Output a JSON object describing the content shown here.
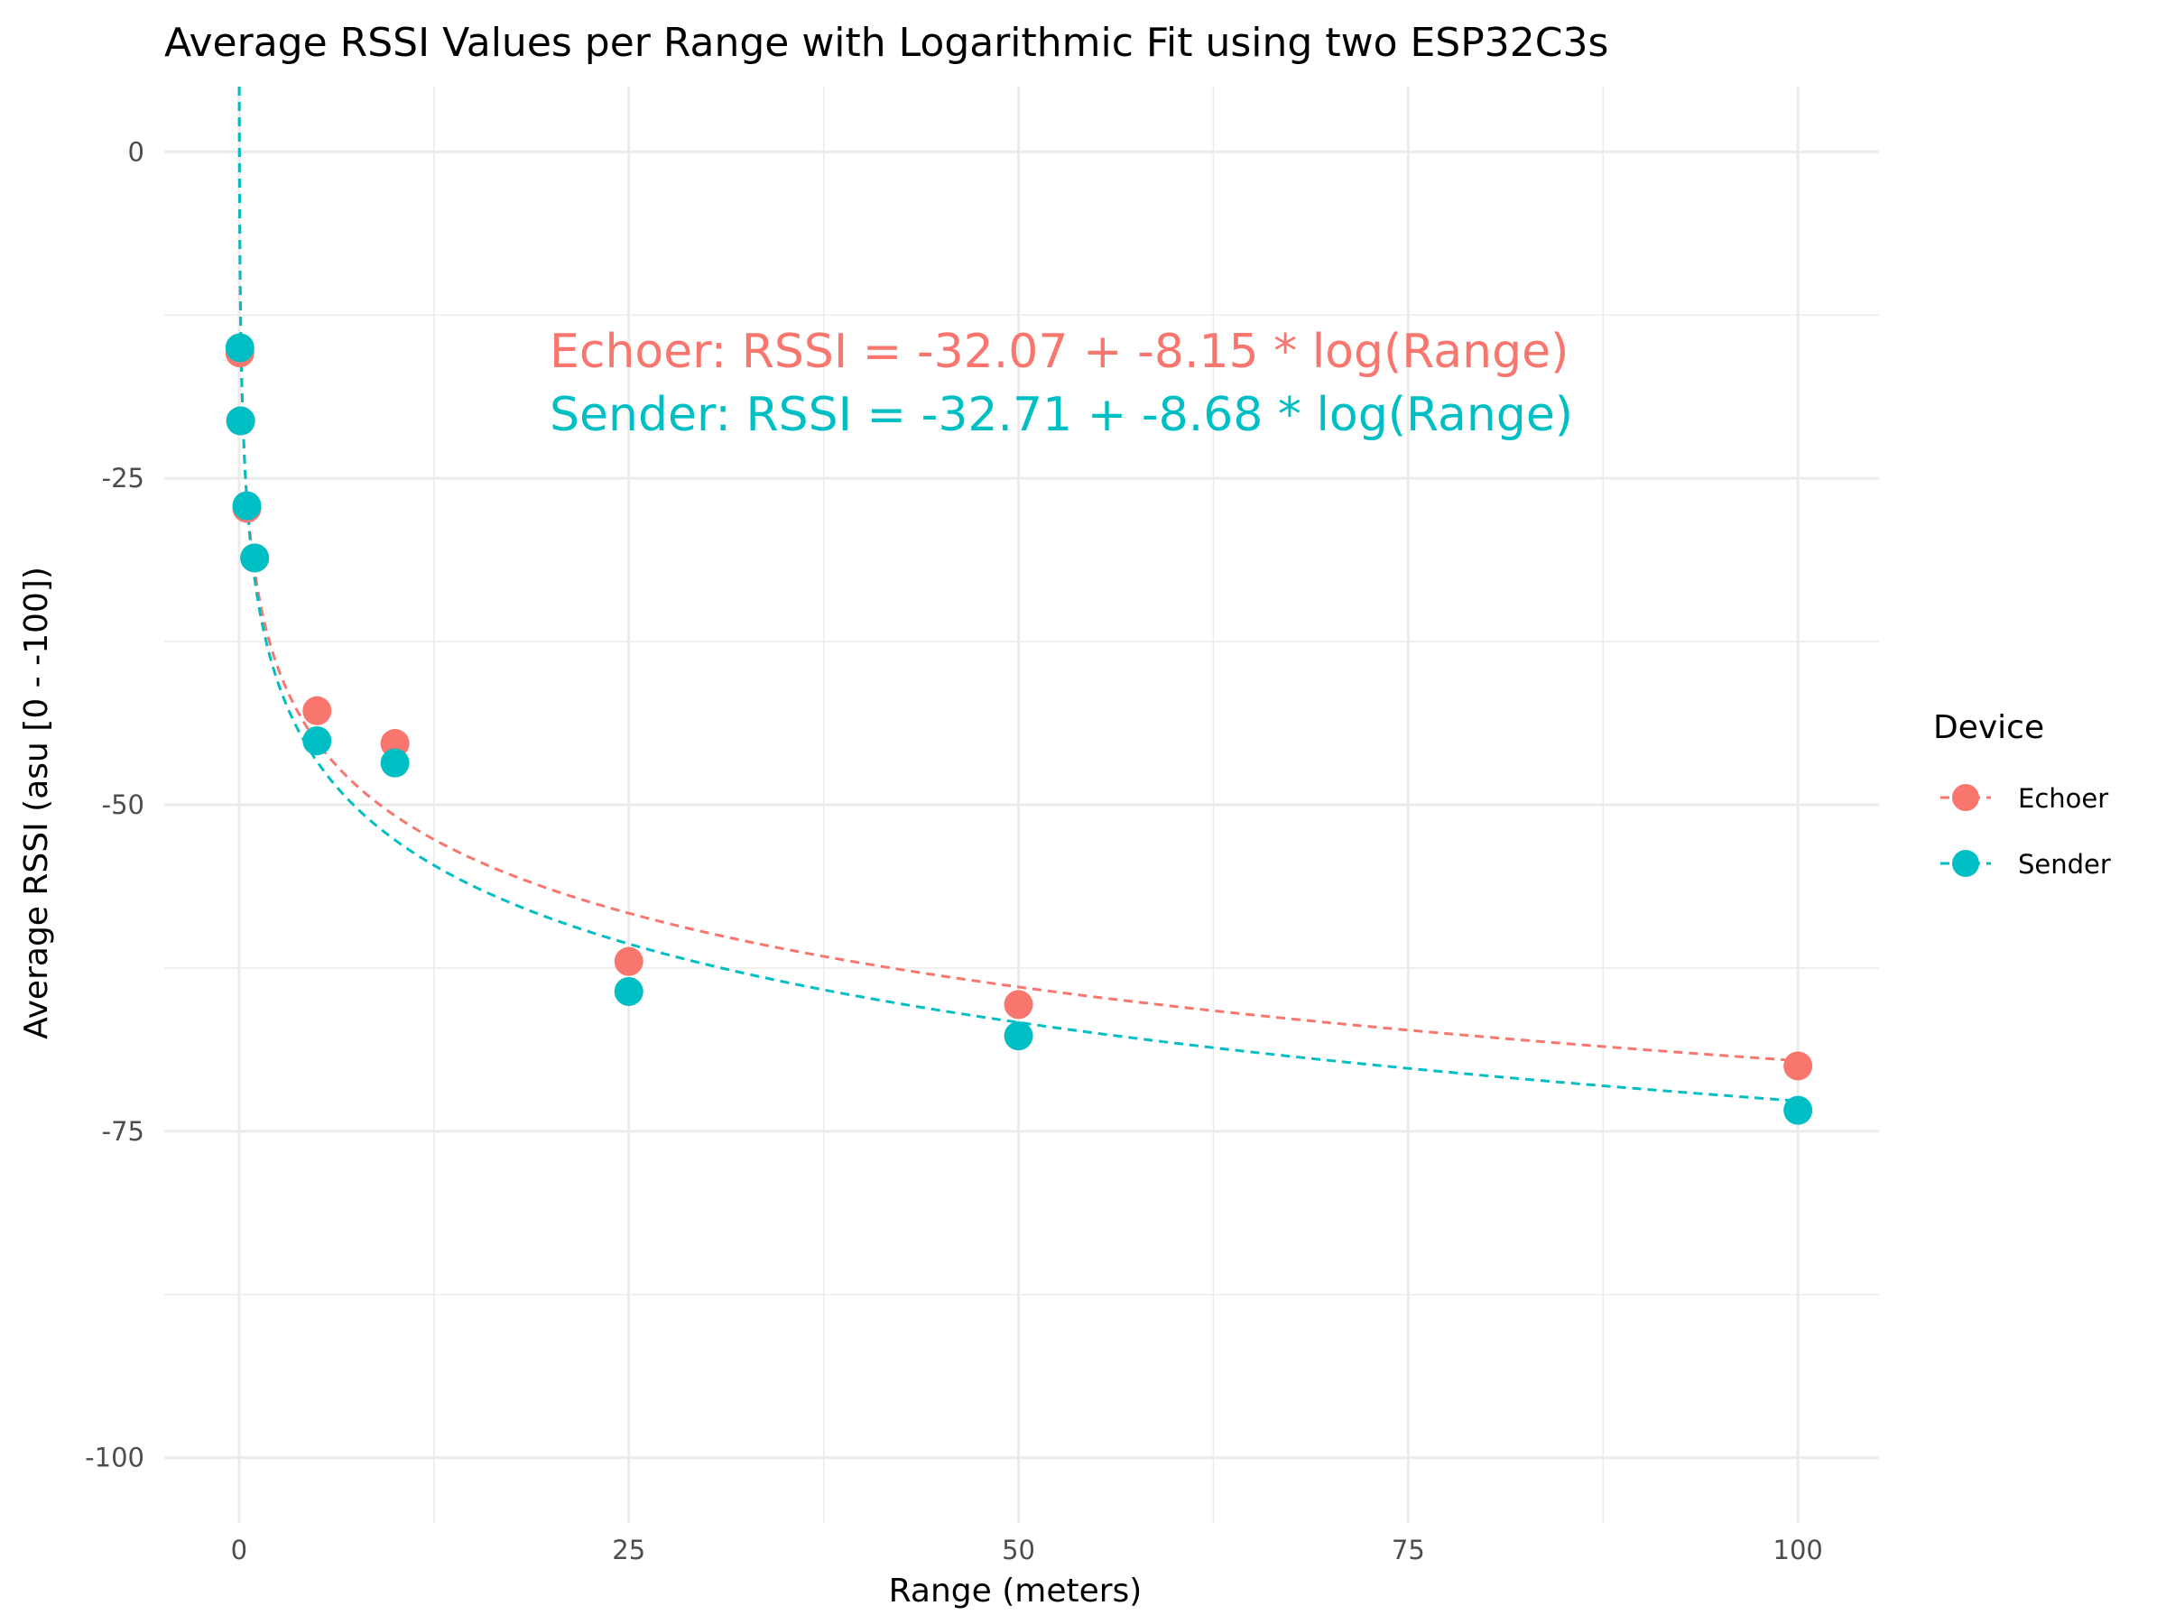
{
  "chart_data": {
    "type": "scatter",
    "title": "Average RSSI Values per Range with Logarithmic Fit using two ESP32C3s",
    "xlabel": "Range (meters)",
    "ylabel": "Average RSSI (asu [0 - -100])",
    "xlim": [
      -4.8,
      105.2
    ],
    "ylim": [
      -105,
      5
    ],
    "x_ticks": [
      0,
      25,
      50,
      75,
      100
    ],
    "x_tick_labels": [
      "0",
      "25",
      "50",
      "75",
      "100"
    ],
    "y_ticks": [
      0,
      -25,
      -50,
      -75,
      -100
    ],
    "y_tick_labels": [
      "0",
      "-25",
      "-50",
      "-75",
      "-100"
    ],
    "grid": true,
    "legend": {
      "title": "Device",
      "position": "right"
    },
    "series": [
      {
        "name": "Echoer",
        "color": "#F8766D",
        "x": [
          0.05,
          0.1,
          0.5,
          1,
          5,
          10,
          25,
          50,
          100
        ],
        "y": [
          -15.4,
          -20.6,
          -27.3,
          -31.1,
          -42.8,
          -45.3,
          -62.0,
          -65.3,
          -70.0
        ],
        "fit": {
          "intercept": -32.07,
          "slope": -8.15
        }
      },
      {
        "name": "Sender",
        "color": "#00BFC4",
        "x": [
          0.05,
          0.1,
          0.5,
          1,
          5,
          10,
          25,
          50,
          100
        ],
        "y": [
          -15.0,
          -20.6,
          -27.1,
          -31.1,
          -45.1,
          -46.8,
          -64.3,
          -67.7,
          -73.4
        ],
        "fit": {
          "intercept": -32.71,
          "slope": -8.68
        }
      }
    ],
    "annotations": [
      {
        "text": "Echoer: RSSI = -32.07 + -8.15 * log(Range)",
        "color": "#F8766D"
      },
      {
        "text": "Sender: RSSI = -32.71 + -8.68 * log(Range)",
        "color": "#00BFC4"
      }
    ]
  }
}
